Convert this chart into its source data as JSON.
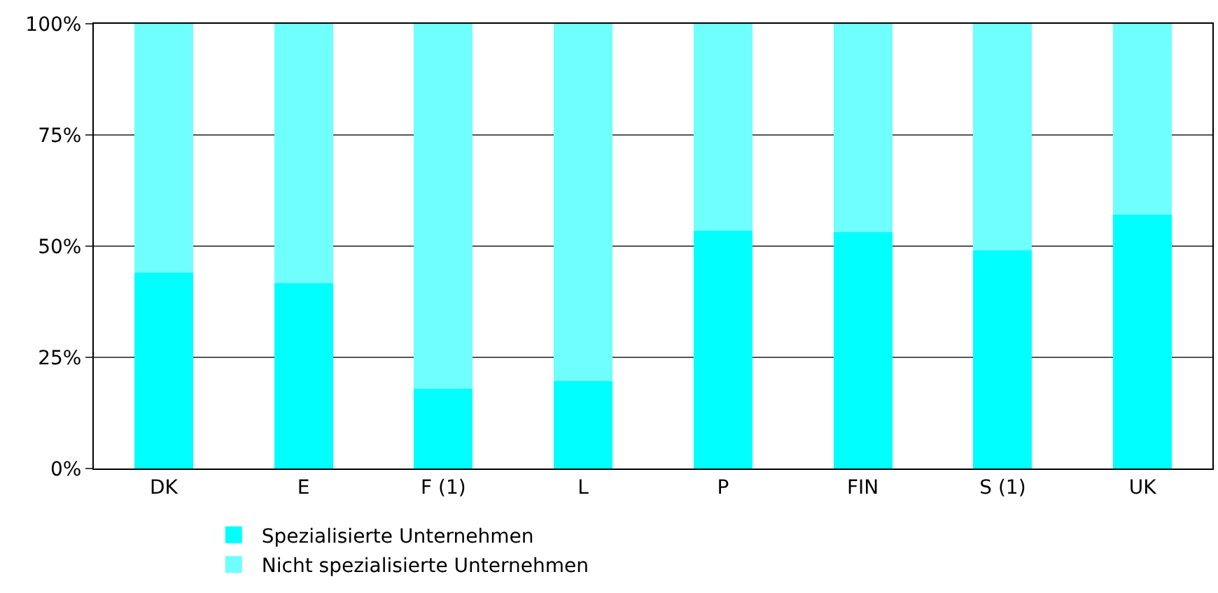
{
  "chart_data": {
    "type": "bar",
    "stacked": true,
    "categories": [
      "DK",
      "E",
      "F (1)",
      "L",
      "P",
      "FIN",
      "S (1)",
      "UK"
    ],
    "series": [
      {
        "name": "Spezialisierte Unternehmen",
        "color": "#00ffff",
        "values": [
          44,
          41.6,
          18,
          19.6,
          53.4,
          53.1,
          49,
          57
        ]
      },
      {
        "name": "Nicht spezialisierte Unternehmen",
        "color": "#6fffff",
        "values": [
          56,
          58.4,
          82,
          80.4,
          46.6,
          46.9,
          51,
          43
        ]
      }
    ],
    "ylim": [
      0,
      100
    ],
    "yticks": [
      {
        "value": 0,
        "label": "0%"
      },
      {
        "value": 25,
        "label": "25%"
      },
      {
        "value": 50,
        "label": "50%"
      },
      {
        "value": 75,
        "label": "75%"
      },
      {
        "value": 100,
        "label": "100%"
      }
    ],
    "grid": "y",
    "legend": "bottom"
  }
}
